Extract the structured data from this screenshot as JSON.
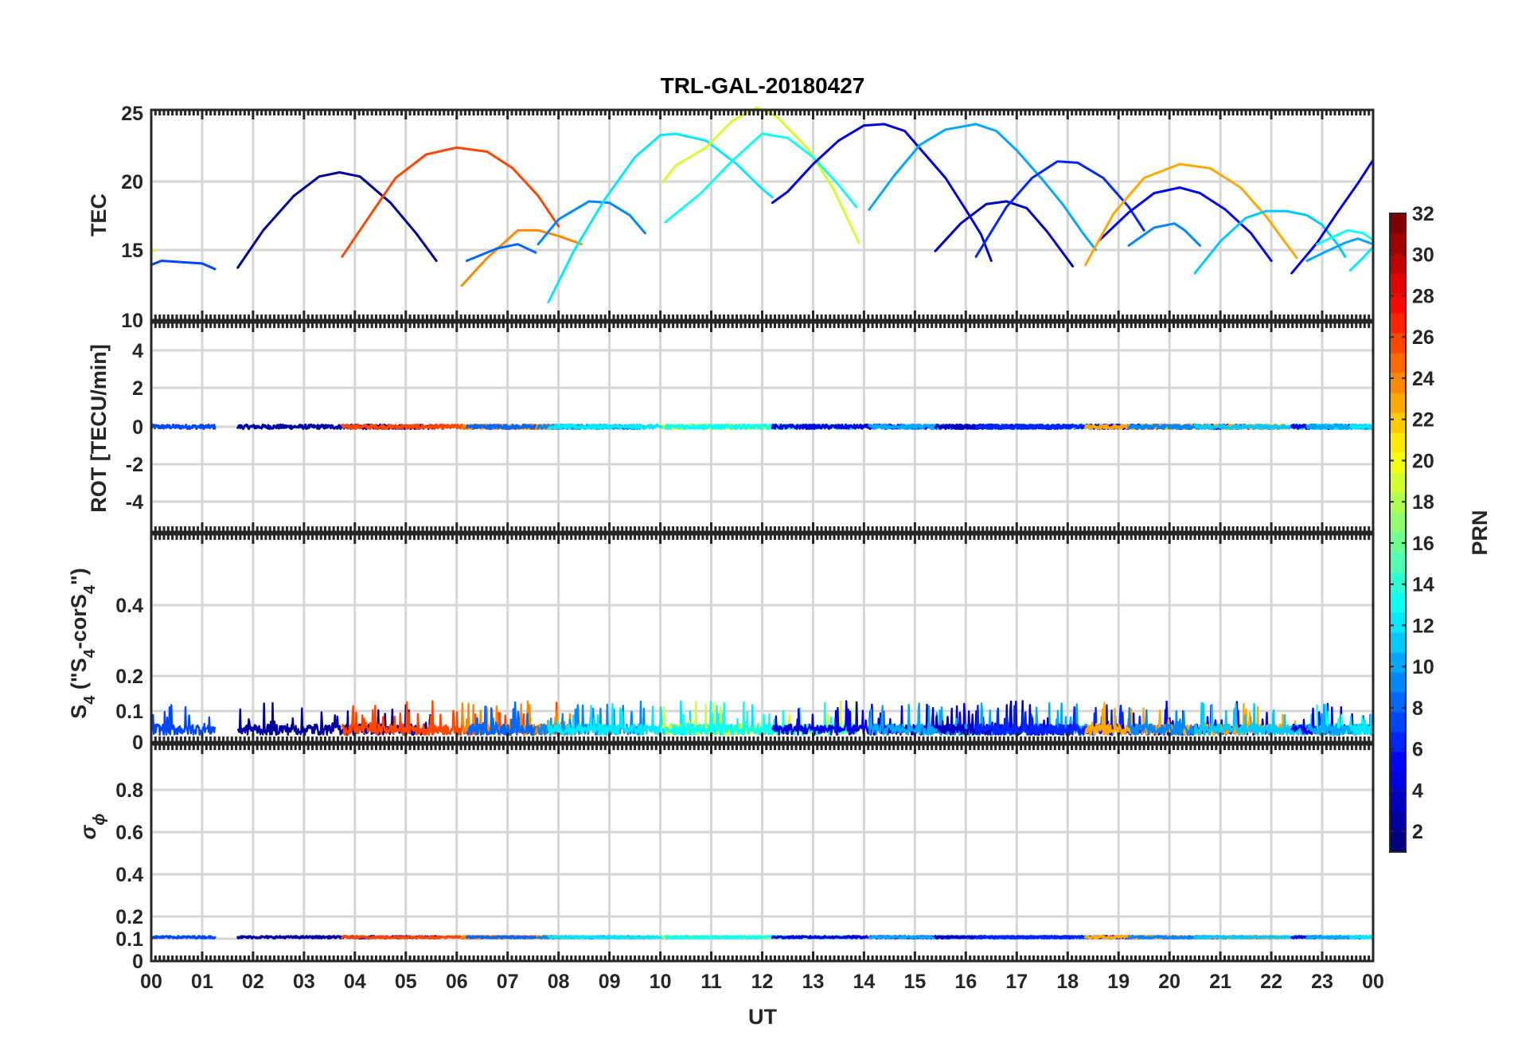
{
  "chart_data": {
    "type": "line",
    "title": "TRL-GAL-20180427",
    "xlabel": "UT",
    "xlim": [
      0,
      24
    ],
    "x_tick_labels": [
      "00",
      "01",
      "02",
      "03",
      "04",
      "05",
      "06",
      "07",
      "08",
      "09",
      "10",
      "11",
      "12",
      "13",
      "14",
      "15",
      "16",
      "17",
      "18",
      "19",
      "20",
      "21",
      "22",
      "23",
      "00"
    ],
    "grid": true,
    "colormap": "jet",
    "colorbar": {
      "label": "PRN",
      "range": [
        1,
        32
      ],
      "ticks": [
        "2",
        "4",
        "6",
        "8",
        "10",
        "12",
        "14",
        "16",
        "18",
        "20",
        "22",
        "24",
        "26",
        "28",
        "30",
        "32"
      ],
      "placement": "right"
    },
    "panels": [
      {
        "id": "tec",
        "ylabel": "TEC",
        "ylim": [
          10,
          25.5
        ],
        "y_tick_labels": [
          "10",
          "15",
          "20",
          "25"
        ]
      },
      {
        "id": "rot",
        "ylabel": "ROT [TECU/min]",
        "ylim": [
          -5.5,
          5.5
        ],
        "y_tick_labels": [
          "-4",
          "-2",
          "0",
          "2",
          "4"
        ]
      },
      {
        "id": "s4",
        "ylabel_main": "S",
        "ylabel_sub": "4",
        "ylabel_rest": " (\"S",
        "ylabel_sub2": "4",
        "ylabel_rest2": "-corS",
        "ylabel_sub3": "4",
        "ylabel_end": "\")",
        "ylim": [
          0,
          0.6
        ],
        "y_tick_labels": [
          "0",
          "0.1",
          "0.2",
          "0.4"
        ]
      },
      {
        "id": "sigma",
        "ylabel_main": "σ",
        "ylabel_sub": "ϕ",
        "ylim": [
          0,
          1
        ],
        "y_tick_labels": [
          "0",
          "0.1",
          "0.2",
          "0.4",
          "0.6",
          "0.8"
        ]
      }
    ],
    "series": [
      {
        "prn": 7,
        "points": [
          [
            0.0,
            14.0
          ],
          [
            0.2,
            14.3
          ],
          [
            0.6,
            14.2
          ],
          [
            1.0,
            14.1
          ],
          [
            1.25,
            13.7
          ]
        ]
      },
      {
        "prn": 20,
        "points": [
          [
            0.0,
            15.2
          ],
          [
            0.05,
            15.0
          ]
        ]
      },
      {
        "prn": 2,
        "points": [
          [
            1.7,
            13.8
          ],
          [
            2.2,
            16.5
          ],
          [
            2.8,
            19.0
          ],
          [
            3.3,
            20.4
          ],
          [
            3.7,
            20.7
          ],
          [
            4.1,
            20.4
          ],
          [
            4.7,
            18.5
          ],
          [
            5.2,
            16.3
          ],
          [
            5.6,
            14.3
          ]
        ]
      },
      {
        "prn": 26,
        "points": [
          [
            3.75,
            14.6
          ],
          [
            4.3,
            17.6
          ],
          [
            4.8,
            20.3
          ],
          [
            5.4,
            22.0
          ],
          [
            6.0,
            22.5
          ],
          [
            6.6,
            22.2
          ],
          [
            7.1,
            21.0
          ],
          [
            7.6,
            19.0
          ],
          [
            8.0,
            16.8
          ]
        ]
      },
      {
        "prn": 24,
        "points": [
          [
            6.1,
            12.5
          ],
          [
            6.6,
            14.5
          ],
          [
            7.2,
            16.5
          ],
          [
            7.6,
            16.5
          ],
          [
            8.0,
            16.1
          ],
          [
            8.45,
            15.5
          ]
        ]
      },
      {
        "prn": 8,
        "points": [
          [
            6.2,
            14.3
          ],
          [
            6.8,
            15.2
          ],
          [
            7.2,
            15.5
          ],
          [
            7.55,
            14.9
          ]
        ]
      },
      {
        "prn": 9,
        "points": [
          [
            7.6,
            15.5
          ],
          [
            8.0,
            17.3
          ],
          [
            8.6,
            18.6
          ],
          [
            9.0,
            18.5
          ],
          [
            9.4,
            17.6
          ],
          [
            9.7,
            16.3
          ]
        ]
      },
      {
        "prn": 12,
        "points": [
          [
            7.8,
            11.3
          ],
          [
            8.3,
            15.0
          ],
          [
            8.9,
            18.7
          ],
          [
            9.5,
            21.8
          ],
          [
            10.0,
            23.4
          ],
          [
            10.3,
            23.5
          ],
          [
            10.9,
            23.0
          ],
          [
            11.5,
            21.3
          ],
          [
            12.0,
            19.5
          ],
          [
            12.2,
            18.9
          ]
        ]
      },
      {
        "prn": 19,
        "points": [
          [
            10.05,
            20.0
          ],
          [
            10.3,
            21.2
          ],
          [
            10.9,
            22.5
          ],
          [
            11.4,
            24.4
          ],
          [
            11.9,
            25.4
          ],
          [
            12.3,
            24.7
          ],
          [
            12.9,
            22.4
          ],
          [
            13.4,
            19.5
          ],
          [
            13.9,
            15.6
          ]
        ]
      },
      {
        "prn": 13,
        "points": [
          [
            10.1,
            17.1
          ],
          [
            10.8,
            19.2
          ],
          [
            11.4,
            21.5
          ],
          [
            12.0,
            23.5
          ],
          [
            12.5,
            23.2
          ],
          [
            13.0,
            21.8
          ],
          [
            13.5,
            19.8
          ],
          [
            13.85,
            18.2
          ]
        ]
      },
      {
        "prn": 4,
        "points": [
          [
            12.2,
            18.5
          ],
          [
            12.5,
            19.3
          ],
          [
            13.0,
            21.3
          ],
          [
            13.5,
            23.0
          ],
          [
            14.0,
            24.1
          ],
          [
            14.4,
            24.2
          ],
          [
            14.8,
            23.7
          ],
          [
            15.2,
            22.0
          ],
          [
            15.6,
            20.3
          ],
          [
            16.0,
            18.0
          ],
          [
            16.3,
            16.2
          ],
          [
            16.5,
            14.3
          ]
        ]
      },
      {
        "prn": 10,
        "points": [
          [
            14.1,
            18.0
          ],
          [
            14.6,
            20.5
          ],
          [
            15.1,
            22.7
          ],
          [
            15.6,
            23.8
          ],
          [
            16.2,
            24.2
          ],
          [
            16.6,
            23.7
          ],
          [
            17.0,
            22.3
          ],
          [
            17.5,
            20.2
          ],
          [
            17.9,
            18.4
          ],
          [
            18.3,
            16.3
          ],
          [
            18.55,
            15.1
          ]
        ]
      },
      {
        "prn": 3,
        "points": [
          [
            15.4,
            15.0
          ],
          [
            15.9,
            17.0
          ],
          [
            16.4,
            18.4
          ],
          [
            16.8,
            18.6
          ],
          [
            17.2,
            18.1
          ],
          [
            17.6,
            16.4
          ],
          [
            18.1,
            13.9
          ]
        ]
      },
      {
        "prn": 6,
        "points": [
          [
            16.2,
            14.6
          ],
          [
            16.8,
            18.2
          ],
          [
            17.3,
            20.3
          ],
          [
            17.8,
            21.5
          ],
          [
            18.2,
            21.4
          ],
          [
            18.7,
            20.3
          ],
          [
            19.2,
            18.2
          ],
          [
            19.5,
            16.5
          ]
        ]
      },
      {
        "prn": 5,
        "points": [
          [
            18.6,
            15.7
          ],
          [
            19.2,
            17.8
          ],
          [
            19.7,
            19.2
          ],
          [
            20.2,
            19.6
          ],
          [
            20.6,
            19.2
          ],
          [
            21.1,
            18.0
          ],
          [
            21.6,
            16.3
          ],
          [
            22.0,
            14.3
          ]
        ]
      },
      {
        "prn": 23,
        "points": [
          [
            18.35,
            14.0
          ],
          [
            18.9,
            17.7
          ],
          [
            19.5,
            20.3
          ],
          [
            20.2,
            21.3
          ],
          [
            20.8,
            21.0
          ],
          [
            21.4,
            19.6
          ],
          [
            21.9,
            17.5
          ],
          [
            22.5,
            14.5
          ]
        ]
      },
      {
        "prn": 9,
        "points": [
          [
            19.2,
            15.4
          ],
          [
            19.7,
            16.7
          ],
          [
            20.1,
            17.0
          ],
          [
            20.3,
            16.5
          ],
          [
            20.6,
            15.4
          ]
        ]
      },
      {
        "prn": 11,
        "points": [
          [
            20.5,
            13.4
          ],
          [
            21.0,
            15.7
          ],
          [
            21.5,
            17.4
          ],
          [
            21.9,
            17.9
          ],
          [
            22.3,
            17.9
          ],
          [
            22.7,
            17.6
          ],
          [
            23.0,
            16.9
          ],
          [
            23.3,
            15.5
          ],
          [
            23.45,
            14.6
          ]
        ]
      },
      {
        "prn": 4,
        "points": [
          [
            22.4,
            13.4
          ],
          [
            22.9,
            15.6
          ],
          [
            23.3,
            17.8
          ],
          [
            23.7,
            19.9
          ],
          [
            24.0,
            21.6
          ]
        ]
      },
      {
        "prn": 13,
        "points": [
          [
            22.9,
            15.5
          ],
          [
            23.2,
            16.0
          ],
          [
            23.5,
            16.5
          ],
          [
            23.8,
            16.3
          ],
          [
            24.0,
            15.8
          ]
        ]
      },
      {
        "prn": 10,
        "points": [
          [
            22.7,
            14.3
          ],
          [
            23.1,
            15.0
          ],
          [
            23.45,
            15.6
          ],
          [
            23.7,
            15.9
          ],
          [
            24.0,
            15.5
          ]
        ]
      },
      {
        "prn": 12,
        "points": [
          [
            23.55,
            13.6
          ],
          [
            23.8,
            14.5
          ],
          [
            24.0,
            15.3
          ]
        ]
      }
    ]
  }
}
